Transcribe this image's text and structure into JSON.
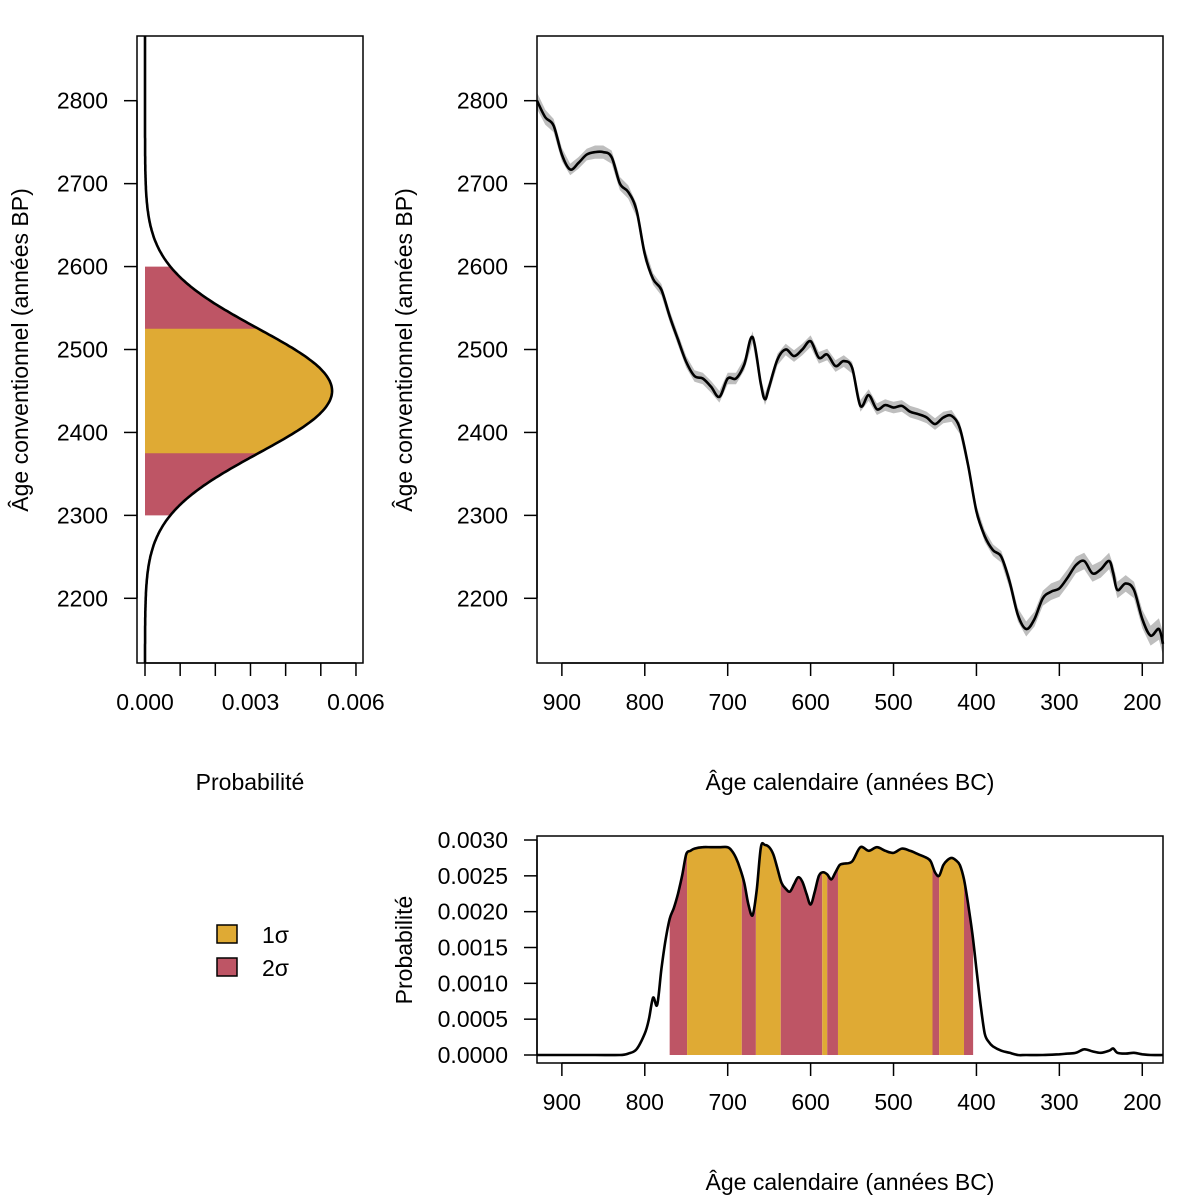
{
  "chart_data": [
    {
      "id": "measured_age_density",
      "type": "area",
      "orientation": "horizontal",
      "xlabel": "Probabilité",
      "ylabel": "Âge conventionnel (années BP)",
      "xlim": [
        0.0,
        0.0062
      ],
      "ylim": [
        2122,
        2878
      ],
      "x_ticks": [
        0.0,
        0.001,
        0.002,
        0.003,
        0.004,
        0.005,
        0.006
      ],
      "x_tick_labels": [
        "0.000",
        "",
        "",
        "0.003",
        "",
        "",
        "0.006"
      ],
      "y_ticks": [
        2200,
        2300,
        2400,
        2500,
        2600,
        2700,
        2800
      ],
      "distribution": {
        "mean": 2450,
        "sd": 75,
        "peak": 0.00532
      },
      "bands": [
        {
          "level": "2σ",
          "from": 2300,
          "to": 2600,
          "color": "#BE5565"
        },
        {
          "level": "1σ",
          "from": 2375,
          "to": 2525,
          "color": "#DFAA34"
        }
      ]
    },
    {
      "id": "calibration_curve",
      "type": "line",
      "xlabel": "Âge calendaire (années BC)",
      "ylabel": "Âge conventionnel (années BP)",
      "x_reversed": true,
      "xlim": [
        930,
        175
      ],
      "ylim": [
        2122,
        2878
      ],
      "x_ticks": [
        900,
        800,
        700,
        600,
        500,
        400,
        300,
        200
      ],
      "y_ticks": [
        2200,
        2300,
        2400,
        2500,
        2600,
        2700,
        2800
      ],
      "band_color": "#BEBEBE",
      "series": [
        {
          "x": [
            930,
            920,
            910,
            900,
            890,
            880,
            870,
            860,
            850,
            840,
            830,
            820,
            810,
            800,
            790,
            780,
            770,
            760,
            750,
            740,
            730,
            720,
            710,
            700,
            690,
            680,
            670,
            660,
            655,
            650,
            640,
            630,
            620,
            610,
            600,
            590,
            580,
            570,
            560,
            550,
            540,
            530,
            520,
            510,
            500,
            490,
            480,
            470,
            460,
            450,
            440,
            430,
            420,
            410,
            400,
            390,
            380,
            370,
            360,
            350,
            340,
            330,
            320,
            310,
            300,
            290,
            280,
            270,
            260,
            250,
            240,
            235,
            230,
            220,
            210,
            200,
            190,
            180,
            175
          ],
          "y": [
            2800,
            2780,
            2770,
            2735,
            2717,
            2725,
            2735,
            2738,
            2738,
            2732,
            2700,
            2690,
            2668,
            2615,
            2585,
            2572,
            2540,
            2512,
            2485,
            2468,
            2465,
            2455,
            2443,
            2465,
            2465,
            2482,
            2515,
            2458,
            2440,
            2455,
            2488,
            2500,
            2492,
            2500,
            2510,
            2490,
            2494,
            2480,
            2486,
            2478,
            2432,
            2445,
            2428,
            2433,
            2430,
            2432,
            2425,
            2422,
            2418,
            2410,
            2418,
            2420,
            2405,
            2360,
            2305,
            2275,
            2258,
            2250,
            2220,
            2180,
            2163,
            2175,
            2200,
            2208,
            2212,
            2225,
            2240,
            2245,
            2230,
            2235,
            2245,
            2230,
            2210,
            2218,
            2210,
            2175,
            2155,
            2163,
            2145
          ],
          "band_width": [
            10,
            9,
            8,
            8,
            7,
            7,
            7,
            8,
            8,
            8,
            8,
            8,
            8,
            8,
            7,
            7,
            7,
            7,
            7,
            7,
            7,
            7,
            7,
            7,
            7,
            7,
            7,
            7,
            7,
            7,
            7,
            7,
            7,
            7,
            7,
            7,
            7,
            7,
            7,
            7,
            7,
            7,
            7,
            7,
            7,
            7,
            7,
            7,
            7,
            7,
            7,
            7,
            7,
            7,
            7,
            7,
            7,
            7,
            8,
            8,
            9,
            9,
            9,
            10,
            10,
            10,
            10,
            10,
            10,
            10,
            10,
            10,
            10,
            10,
            10,
            11,
            12,
            13,
            14
          ]
        }
      ]
    },
    {
      "id": "calibrated_density",
      "type": "area",
      "xlabel": "Âge calendaire (années BC)",
      "ylabel": "Probabilité",
      "x_reversed": true,
      "xlim": [
        930,
        175
      ],
      "ylim": [
        0.0,
        0.003
      ],
      "x_ticks": [
        900,
        800,
        700,
        600,
        500,
        400,
        300,
        200
      ],
      "y_ticks": [
        0.0,
        0.0005,
        0.001,
        0.0015,
        0.002,
        0.0025,
        0.003
      ],
      "y_tick_labels": [
        "0.0000",
        "0.0005",
        "0.0010",
        "0.0015",
        "0.0020",
        "0.0025",
        "0.0030"
      ],
      "series": [
        {
          "x": [
            930,
            900,
            860,
            830,
            820,
            810,
            800,
            795,
            790,
            785,
            780,
            775,
            770,
            765,
            760,
            755,
            750,
            745,
            740,
            730,
            720,
            710,
            700,
            695,
            690,
            685,
            680,
            675,
            670,
            665,
            660,
            655,
            650,
            645,
            640,
            635,
            630,
            625,
            620,
            615,
            610,
            605,
            600,
            595,
            590,
            585,
            580,
            575,
            570,
            565,
            560,
            550,
            540,
            530,
            520,
            510,
            500,
            490,
            480,
            470,
            460,
            455,
            450,
            445,
            440,
            435,
            430,
            425,
            420,
            415,
            410,
            405,
            400,
            395,
            390,
            385,
            380,
            370,
            360,
            350,
            340,
            320,
            300,
            290,
            280,
            270,
            260,
            250,
            240,
            235,
            230,
            220,
            210,
            200,
            190,
            175
          ],
          "y": [
            0.0,
            0.0,
            0.0,
            0.0,
            2e-05,
            8e-05,
            0.0003,
            0.0005,
            0.0008,
            0.0007,
            0.0012,
            0.0016,
            0.0019,
            0.00205,
            0.00225,
            0.0025,
            0.0028,
            0.00285,
            0.00288,
            0.0029,
            0.0029,
            0.0029,
            0.0029,
            0.00285,
            0.00275,
            0.0026,
            0.0024,
            0.0021,
            0.00195,
            0.0023,
            0.0029,
            0.00293,
            0.0029,
            0.0028,
            0.0026,
            0.0024,
            0.00232,
            0.00228,
            0.00238,
            0.00248,
            0.00242,
            0.00225,
            0.0021,
            0.00228,
            0.0025,
            0.00255,
            0.00252,
            0.00245,
            0.00255,
            0.00265,
            0.00267,
            0.0027,
            0.0029,
            0.00285,
            0.0029,
            0.00285,
            0.00282,
            0.00288,
            0.00285,
            0.0028,
            0.00275,
            0.0027,
            0.00255,
            0.0025,
            0.00265,
            0.00272,
            0.00275,
            0.00272,
            0.00265,
            0.00245,
            0.0021,
            0.0017,
            0.0012,
            0.0007,
            0.0003,
            0.00018,
            0.00012,
            6e-05,
            3e-05,
            0.0,
            0.0,
            0.0,
            1e-05,
            2e-05,
            3e-05,
            8e-05,
            5e-05,
            3e-05,
            6e-05,
            9e-05,
            3e-05,
            2e-05,
            3e-05,
            1e-05,
            0.0,
            0.0
          ]
        }
      ],
      "bands": [
        {
          "level": "2σ",
          "from": 770,
          "to": 749,
          "color": "#BE5565"
        },
        {
          "level": "1σ",
          "from": 749,
          "to": 683,
          "color": "#DFAA34"
        },
        {
          "level": "2σ",
          "from": 683,
          "to": 666,
          "color": "#BE5565"
        },
        {
          "level": "1σ",
          "from": 666,
          "to": 636,
          "color": "#DFAA34"
        },
        {
          "level": "2σ",
          "from": 636,
          "to": 586,
          "color": "#BE5565"
        },
        {
          "level": "1σ",
          "from": 586,
          "to": 580,
          "color": "#DFAA34"
        },
        {
          "level": "2σ",
          "from": 580,
          "to": 567,
          "color": "#BE5565"
        },
        {
          "level": "1σ",
          "from": 567,
          "to": 453,
          "color": "#DFAA34"
        },
        {
          "level": "2σ",
          "from": 453,
          "to": 445,
          "color": "#BE5565"
        },
        {
          "level": "1σ",
          "from": 445,
          "to": 415,
          "color": "#DFAA34"
        },
        {
          "level": "2σ",
          "from": 415,
          "to": 404,
          "color": "#BE5565"
        }
      ]
    }
  ],
  "legend": {
    "items": [
      {
        "label": "1σ",
        "color": "#DFAA34"
      },
      {
        "label": "2σ",
        "color": "#BE5565"
      }
    ]
  }
}
